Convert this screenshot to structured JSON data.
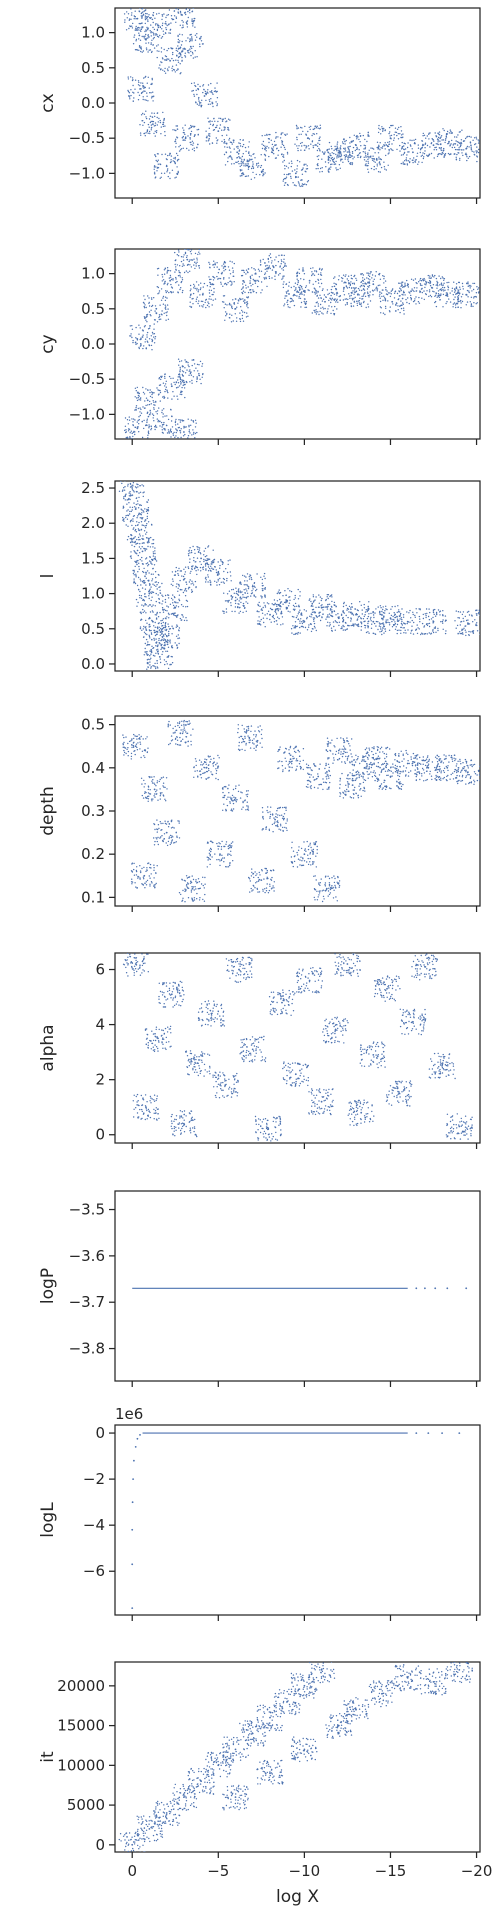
{
  "figure": {
    "xlabel": "log X",
    "x_ticks": [
      0,
      -5,
      -10,
      -15,
      -20
    ],
    "x_tick_labels": [
      "0",
      "−5",
      "−10",
      "−15",
      "−20"
    ],
    "xlim": [
      1.0,
      -20.2
    ],
    "marker_color": "#4c72b0"
  },
  "chart_data": [
    {
      "type": "scatter",
      "ylabel": "cx",
      "ylim": [
        -1.35,
        1.35
      ],
      "y_ticks": [
        1.0,
        0.5,
        0.0,
        -0.5,
        -1.0
      ],
      "y_tick_labels": [
        "1.0",
        "0.5",
        "0.0",
        "−0.5",
        "−1.0"
      ],
      "points": [
        [
          -0.3,
          1.2
        ],
        [
          -0.8,
          0.9
        ],
        [
          -1.5,
          1.1
        ],
        [
          -2.2,
          0.6
        ],
        [
          -2.9,
          1.25
        ],
        [
          -3.4,
          0.8
        ],
        [
          -0.5,
          0.2
        ],
        [
          -1.2,
          -0.3
        ],
        [
          -2.0,
          -0.9
        ],
        [
          -3.1,
          -0.5
        ],
        [
          -4.2,
          0.1
        ],
        [
          -5.0,
          -0.4
        ],
        [
          -6.1,
          -0.7
        ],
        [
          -7.0,
          -0.9
        ],
        [
          -8.3,
          -0.6
        ],
        [
          -9.5,
          -1.0
        ],
        [
          -10.2,
          -0.5
        ],
        [
          -11.4,
          -0.8
        ],
        [
          -12.1,
          -0.7
        ],
        [
          -13.0,
          -0.6
        ],
        [
          -14.2,
          -0.8
        ],
        [
          -15.0,
          -0.5
        ],
        [
          -16.3,
          -0.7
        ],
        [
          -17.5,
          -0.6
        ],
        [
          -18.4,
          -0.55
        ],
        [
          -19.4,
          -0.65
        ]
      ]
    },
    {
      "type": "scatter",
      "ylabel": "cy",
      "ylim": [
        -1.35,
        1.35
      ],
      "y_ticks": [
        1.0,
        0.5,
        0.0,
        -0.5,
        -1.0
      ],
      "y_tick_labels": [
        "1.0",
        "0.5",
        "0.0",
        "−0.5",
        "−1.0"
      ],
      "points": [
        [
          -0.3,
          -1.2
        ],
        [
          -0.9,
          -0.8
        ],
        [
          -1.6,
          -1.1
        ],
        [
          -2.3,
          -0.6
        ],
        [
          -3.0,
          -1.25
        ],
        [
          -3.4,
          -0.4
        ],
        [
          -0.6,
          0.1
        ],
        [
          -1.4,
          0.5
        ],
        [
          -2.2,
          0.9
        ],
        [
          -3.2,
          1.2
        ],
        [
          -4.1,
          0.7
        ],
        [
          -5.2,
          1.0
        ],
        [
          -6.0,
          0.5
        ],
        [
          -7.1,
          0.9
        ],
        [
          -8.2,
          1.1
        ],
        [
          -9.4,
          0.7
        ],
        [
          -10.3,
          0.9
        ],
        [
          -11.2,
          0.6
        ],
        [
          -12.3,
          0.8
        ],
        [
          -13.1,
          0.7
        ],
        [
          -14.0,
          0.85
        ],
        [
          -15.1,
          0.6
        ],
        [
          -16.2,
          0.75
        ],
        [
          -17.4,
          0.8
        ],
        [
          -18.3,
          0.7
        ],
        [
          -19.4,
          0.7
        ]
      ]
    },
    {
      "type": "scatter",
      "ylabel": "l",
      "ylim": [
        -0.1,
        2.6
      ],
      "y_ticks": [
        0.0,
        0.5,
        1.0,
        1.5,
        2.0,
        2.5
      ],
      "y_tick_labels": [
        "0.0",
        "0.5",
        "1.0",
        "1.5",
        "2.0",
        "2.5"
      ],
      "points": [
        [
          0.0,
          2.5
        ],
        [
          -0.2,
          2.2
        ],
        [
          -0.4,
          1.9
        ],
        [
          -0.6,
          1.6
        ],
        [
          -0.8,
          1.3
        ],
        [
          -1.0,
          1.0
        ],
        [
          -1.2,
          0.6
        ],
        [
          -1.4,
          0.3
        ],
        [
          -1.6,
          0.1
        ],
        [
          -2.0,
          0.4
        ],
        [
          -2.5,
          0.8
        ],
        [
          -3.0,
          1.2
        ],
        [
          -4.0,
          1.5
        ],
        [
          -5.0,
          1.3
        ],
        [
          -6.0,
          0.9
        ],
        [
          -7.0,
          1.1
        ],
        [
          -8.0,
          0.7
        ],
        [
          -9.0,
          0.9
        ],
        [
          -10.0,
          0.6
        ],
        [
          -11.0,
          0.8
        ],
        [
          -12.0,
          0.65
        ],
        [
          -13.0,
          0.7
        ],
        [
          -14.0,
          0.6
        ],
        [
          -15.0,
          0.65
        ],
        [
          -16.0,
          0.6
        ],
        [
          -17.5,
          0.6
        ],
        [
          -19.5,
          0.58
        ]
      ]
    },
    {
      "type": "scatter",
      "ylabel": "depth",
      "ylim": [
        0.08,
        0.52
      ],
      "y_ticks": [
        0.1,
        0.2,
        0.3,
        0.4,
        0.5
      ],
      "y_tick_labels": [
        "0.1",
        "0.2",
        "0.3",
        "0.4",
        "0.5"
      ],
      "points": [
        [
          -0.2,
          0.45
        ],
        [
          -0.7,
          0.15
        ],
        [
          -1.3,
          0.35
        ],
        [
          -2.0,
          0.25
        ],
        [
          -2.8,
          0.48
        ],
        [
          -3.5,
          0.12
        ],
        [
          -4.3,
          0.4
        ],
        [
          -5.1,
          0.2
        ],
        [
          -6.0,
          0.33
        ],
        [
          -6.8,
          0.47
        ],
        [
          -7.5,
          0.14
        ],
        [
          -8.3,
          0.28
        ],
        [
          -9.2,
          0.42
        ],
        [
          -10.0,
          0.2
        ],
        [
          -10.8,
          0.38
        ],
        [
          -11.3,
          0.12
        ],
        [
          -12.0,
          0.44
        ],
        [
          -12.8,
          0.36
        ],
        [
          -13.5,
          0.4
        ],
        [
          -14.2,
          0.42
        ],
        [
          -15.0,
          0.38
        ],
        [
          -16.0,
          0.41
        ],
        [
          -17.2,
          0.4
        ],
        [
          -18.3,
          0.4
        ],
        [
          -19.5,
          0.39
        ]
      ]
    },
    {
      "type": "scatter",
      "ylabel": "alpha",
      "ylim": [
        -0.3,
        6.6
      ],
      "y_ticks": [
        0,
        2,
        4,
        6
      ],
      "y_tick_labels": [
        "0",
        "2",
        "4",
        "6"
      ],
      "points": [
        [
          -0.2,
          6.2
        ],
        [
          -0.8,
          1.0
        ],
        [
          -1.5,
          3.5
        ],
        [
          -2.3,
          5.1
        ],
        [
          -3.0,
          0.4
        ],
        [
          -3.8,
          2.6
        ],
        [
          -4.6,
          4.4
        ],
        [
          -5.4,
          1.8
        ],
        [
          -6.2,
          6.0
        ],
        [
          -7.0,
          3.1
        ],
        [
          -7.9,
          0.2
        ],
        [
          -8.7,
          4.8
        ],
        [
          -9.5,
          2.2
        ],
        [
          -10.3,
          5.6
        ],
        [
          -11.0,
          1.2
        ],
        [
          -11.8,
          3.8
        ],
        [
          -12.5,
          6.2
        ],
        [
          -13.3,
          0.8
        ],
        [
          -14.0,
          2.9
        ],
        [
          -14.8,
          5.3
        ],
        [
          -15.5,
          1.5
        ],
        [
          -16.3,
          4.1
        ],
        [
          -17.0,
          6.1
        ],
        [
          -18.0,
          2.5
        ],
        [
          -19.0,
          0.3
        ]
      ]
    },
    {
      "type": "scatter",
      "ylabel": "logP",
      "ylim": [
        -3.87,
        -3.46
      ],
      "y_ticks": [
        -3.5,
        -3.6,
        -3.7,
        -3.8
      ],
      "y_tick_labels": [
        "−3.5",
        "−3.6",
        "−3.7",
        "−3.8"
      ],
      "line_y": -3.67,
      "line_x": [
        0,
        -16
      ],
      "points": [
        [
          -16.5,
          -3.67
        ],
        [
          -17.0,
          -3.67
        ],
        [
          -17.6,
          -3.67
        ],
        [
          -18.3,
          -3.67
        ],
        [
          -19.4,
          -3.67
        ]
      ]
    },
    {
      "type": "scatter",
      "ylabel": "logL",
      "offset_label": "1e6",
      "ylim": [
        -7.9,
        0.35
      ],
      "y_ticks": [
        0,
        -2,
        -4,
        -6
      ],
      "y_tick_labels": [
        "0",
        "−2",
        "−4",
        "−6"
      ],
      "line_y": 0.0,
      "line_x": [
        -0.6,
        -16
      ],
      "points": [
        [
          0.0,
          -7.6
        ],
        [
          0.0,
          -5.7
        ],
        [
          0.0,
          -4.2
        ],
        [
          -0.02,
          -3.0
        ],
        [
          -0.05,
          -2.0
        ],
        [
          -0.1,
          -1.2
        ],
        [
          -0.2,
          -0.6
        ],
        [
          -0.3,
          -0.25
        ],
        [
          -0.45,
          -0.08
        ],
        [
          -16.5,
          0.0
        ],
        [
          -17.2,
          0.0
        ],
        [
          -18.0,
          0.0
        ],
        [
          -19.0,
          0.0
        ]
      ]
    },
    {
      "type": "scatter",
      "ylabel": "it",
      "ylim": [
        -900,
        23000
      ],
      "y_ticks": [
        0,
        5000,
        10000,
        15000,
        20000
      ],
      "y_tick_labels": [
        "0",
        "5000",
        "10000",
        "15000",
        "20000"
      ],
      "points": [
        [
          0.0,
          0
        ],
        [
          -1.0,
          2000
        ],
        [
          -2.0,
          4000
        ],
        [
          -3.0,
          6000
        ],
        [
          -4.0,
          8000
        ],
        [
          -5.0,
          10000
        ],
        [
          -6.0,
          12000
        ],
        [
          -7.0,
          14000
        ],
        [
          -8.0,
          16000
        ],
        [
          -9.0,
          18000
        ],
        [
          -10.0,
          20000
        ],
        [
          -11.0,
          22000
        ],
        [
          -6.0,
          6000
        ],
        [
          -8.0,
          9000
        ],
        [
          -10.0,
          12000
        ],
        [
          -12.0,
          15000
        ],
        [
          -13.0,
          17000
        ],
        [
          -14.5,
          19000
        ],
        [
          -16.0,
          21000
        ],
        [
          -17.5,
          20500
        ],
        [
          -19.0,
          22000
        ]
      ]
    }
  ]
}
